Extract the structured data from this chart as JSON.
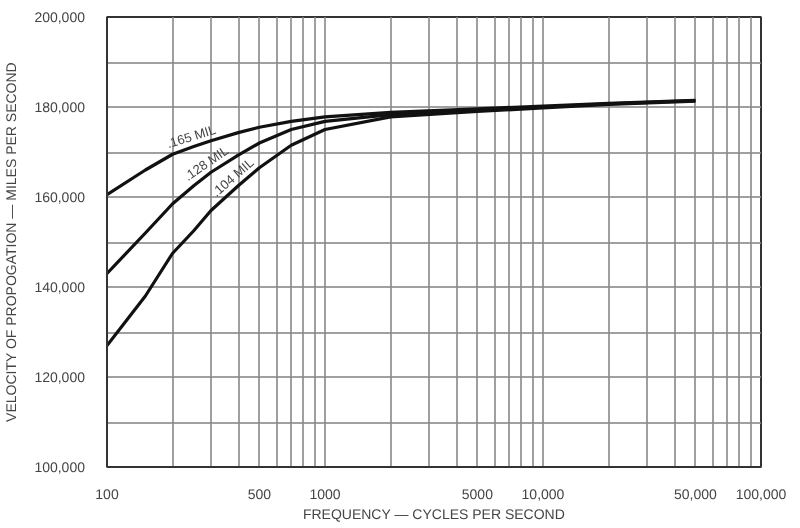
{
  "chart_data": {
    "type": "line",
    "xlabel": "FREQUENCY — CYCLES PER SECOND",
    "ylabel": "VELOCITY OF PROPOGATION — MILES PER SECOND",
    "x": [
      100,
      150,
      200,
      250,
      300,
      400,
      500,
      700,
      1000,
      2000,
      5000,
      10000,
      20000,
      50000
    ],
    "series": [
      {
        "color": "#111111",
        "values": [
          160500,
          166000,
          169500,
          171200,
          172500,
          174300,
          175500,
          176800,
          177800,
          178800,
          179600,
          180200,
          180800,
          181500
        ]
      },
      {
        "color": "#111111",
        "values": [
          143000,
          152000,
          158500,
          162500,
          165500,
          169300,
          172000,
          175000,
          176800,
          178300,
          179300,
          180000,
          180700,
          181400
        ]
      },
      {
        "color": "#111111",
        "values": [
          127000,
          138000,
          147500,
          152500,
          157000,
          162500,
          166500,
          171500,
          175000,
          177800,
          179000,
          179800,
          180600,
          181300
        ]
      }
    ],
    "annotations": [
      {
        "text": ".165 MIL",
        "x": 250,
        "y": 171200
      },
      {
        "text": ".128 MIL",
        "x": 300,
        "y": 165500
      },
      {
        "text": ".104 MIL",
        "x": 400,
        "y": 162500
      }
    ],
    "log": "x",
    "xlim": [
      100,
      100000
    ],
    "ylim": [
      100000,
      200000
    ],
    "xticks": [
      100,
      {
        "value": 200,
        "label": null
      },
      {
        "value": 300,
        "label": null
      },
      {
        "value": 400,
        "label": null
      },
      500,
      {
        "value": 600,
        "label": null
      },
      {
        "value": 700,
        "label": null
      },
      {
        "value": 800,
        "label": null
      },
      {
        "value": 900,
        "label": null
      },
      1000,
      {
        "value": 2000,
        "label": null
      },
      {
        "value": 3000,
        "label": null
      },
      {
        "value": 4000,
        "label": null
      },
      5000,
      {
        "value": 6000,
        "label": null
      },
      {
        "value": 7000,
        "label": null
      },
      {
        "value": 8000,
        "label": null
      },
      {
        "value": 9000,
        "label": null
      },
      {
        "value": 10000,
        "label": "10,000"
      },
      {
        "value": 20000,
        "label": null
      },
      {
        "value": 30000,
        "label": null
      },
      {
        "value": 40000,
        "label": null
      },
      {
        "value": 50000,
        "label": "50,000"
      },
      {
        "value": 60000,
        "label": null
      },
      {
        "value": 70000,
        "label": null
      },
      {
        "value": 80000,
        "label": null
      },
      {
        "value": 90000,
        "label": null
      },
      {
        "value": 100000,
        "label": "100,000"
      }
    ],
    "yticks": [
      {
        "value": 100000,
        "label": "100,000"
      },
      {
        "value": 110000,
        "label": null
      },
      {
        "value": 120000,
        "label": "120,000"
      },
      {
        "value": 130000,
        "label": null
      },
      {
        "value": 140000,
        "label": "140,000"
      },
      {
        "value": 150000,
        "label": null
      },
      {
        "value": 160000,
        "label": "160,000"
      },
      {
        "value": 170000,
        "label": null
      },
      {
        "value": 180000,
        "label": "180,000"
      },
      {
        "value": 190000,
        "label": null
      },
      {
        "value": 200000,
        "label": "200,000"
      }
    ],
    "grid": true,
    "line_style": "solid",
    "marker": "none"
  }
}
